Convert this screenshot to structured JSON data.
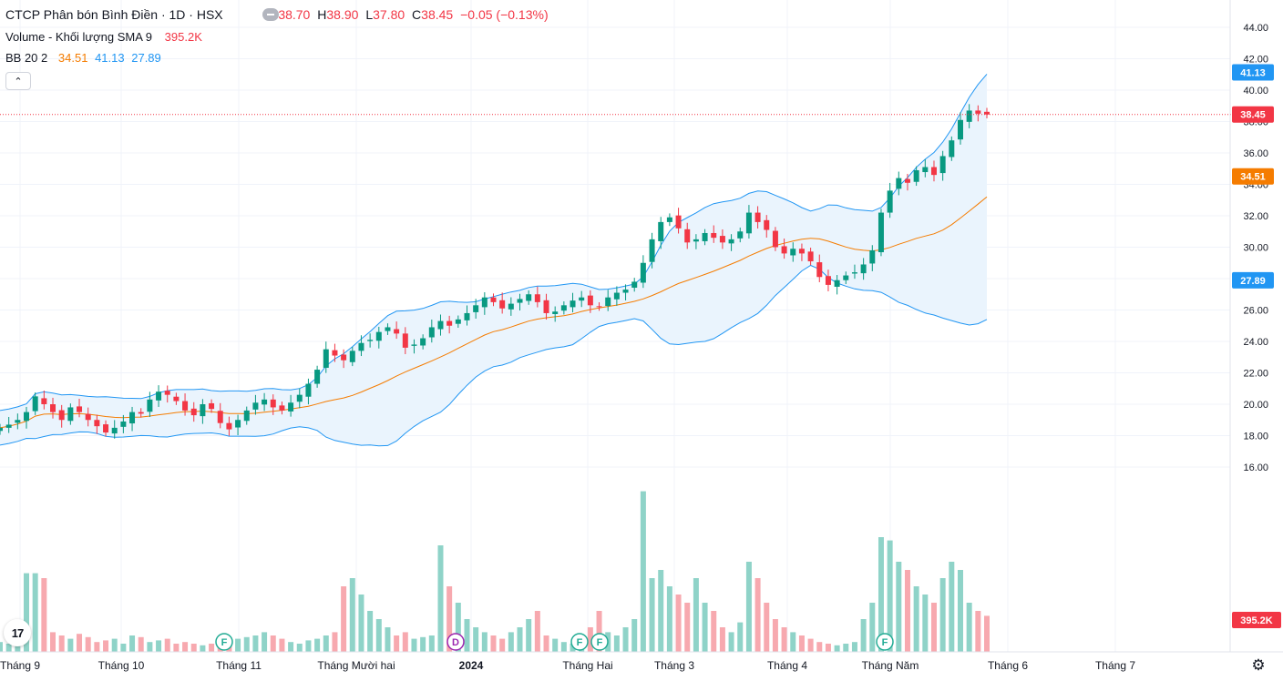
{
  "legend": {
    "symbol": "CTCP Phân bón Bình Điền · 1D · HSX",
    "ohlc": [
      {
        "label": "O",
        "value": "38.70"
      },
      {
        "label": "H",
        "value": "38.90"
      },
      {
        "label": "L",
        "value": "37.80"
      },
      {
        "label": "C",
        "value": "38.45"
      }
    ],
    "change": "−0.05 (−0.13%)",
    "volume_label": "Volume - Khối lượng SMA 9",
    "volume_value": "395.2K",
    "bb_label": "BB 20 2",
    "bb_basis": "34.51",
    "bb_upper": "41.13",
    "bb_lower": "27.89"
  },
  "logo_text": "17",
  "colors": {
    "up": "#089981",
    "down": "#F23645",
    "up_volume": "#8FD3C8",
    "down_volume": "#F7A9AF",
    "bb_basis": "#F57C00",
    "bb_band": "#2196F3",
    "bb_fill": "#EAF4FD",
    "event_green": "#22AB94",
    "event_purple": "#9C27B0"
  },
  "chart_data": {
    "type": "candlestick",
    "title": "CTCP Phân bón Bình Điền · 1D · HSX",
    "ylim": [
      15.0,
      45.0
    ],
    "y_ticks": [
      "16.00",
      "18.00",
      "20.00",
      "22.00",
      "24.00",
      "26.00",
      "28.00",
      "30.00",
      "32.00",
      "34.00",
      "36.00",
      "38.00",
      "40.00",
      "42.00",
      "44.00"
    ],
    "x_labels": [
      "Tháng 9",
      "Tháng 10",
      "Tháng 11",
      "Tháng Mười hai",
      "2024",
      "Tháng Hai",
      "Tháng 3",
      "Tháng 4",
      "Tháng Năm",
      "Tháng 6",
      "Tháng 7"
    ],
    "last_price": "38.45",
    "price_labels": [
      {
        "name": "BB upper",
        "value": "41.13"
      },
      {
        "name": "last",
        "value": "38.45"
      },
      {
        "name": "BB basis",
        "value": "34.51"
      },
      {
        "name": "BB lower",
        "value": "27.89"
      }
    ],
    "volume_last_label": "395.2K",
    "events": [
      {
        "label": "F",
        "kind": "dividend",
        "month": "Tháng 11"
      },
      {
        "label": "D",
        "kind": "dividend",
        "month": "2024"
      },
      {
        "label": "F",
        "kind": "dividend",
        "month": "Tháng Hai"
      },
      {
        "label": "F",
        "kind": "dividend",
        "month": "Tháng Hai"
      },
      {
        "label": "F",
        "kind": "dividend",
        "month": "Tháng Năm"
      }
    ],
    "close_path": [
      18.5,
      18.7,
      19.0,
      19.5,
      20.5,
      20.0,
      19.5,
      19.0,
      19.8,
      19.5,
      19.0,
      18.6,
      18.2,
      18.5,
      18.9,
      19.5,
      19.4,
      20.3,
      20.8,
      20.6,
      20.2,
      19.6,
      19.3,
      20.0,
      19.7,
      18.8,
      18.4,
      19.0,
      19.6,
      20.1,
      20.3,
      19.8,
      19.6,
      20.1,
      20.6,
      21.3,
      22.2,
      23.5,
      23.1,
      22.8,
      23.4,
      23.9,
      24.1,
      24.6,
      24.9,
      24.5,
      23.6,
      23.8,
      24.2,
      24.9,
      25.3,
      25.0,
      25.4,
      25.8,
      26.3,
      26.8,
      26.5,
      26.1,
      26.4,
      26.7,
      27.0,
      26.5,
      25.8,
      25.9,
      26.3,
      26.6,
      26.8,
      26.3,
      26.2,
      26.8,
      27.1,
      27.3,
      27.8,
      29.0,
      30.5,
      31.6,
      31.9,
      31.2,
      30.3,
      30.5,
      30.9,
      30.6,
      30.3,
      30.5,
      31.0,
      32.2,
      31.6,
      31.1,
      30.0,
      29.6,
      29.9,
      29.6,
      29.1,
      28.1,
      27.6,
      27.9,
      28.2,
      28.4,
      28.9,
      29.8,
      32.2,
      33.6,
      34.4,
      34.1,
      34.9,
      35.1,
      34.6,
      35.8,
      36.8,
      38.1,
      38.7,
      38.5,
      38.45
    ],
    "volume_relative": [
      0.06,
      0.05,
      0.07,
      0.48,
      0.48,
      0.45,
      0.12,
      0.1,
      0.08,
      0.11,
      0.09,
      0.06,
      0.07,
      0.08,
      0.05,
      0.1,
      0.09,
      0.06,
      0.07,
      0.08,
      0.05,
      0.06,
      0.05,
      0.04,
      0.05,
      0.06,
      0.07,
      0.08,
      0.09,
      0.1,
      0.12,
      0.1,
      0.08,
      0.06,
      0.05,
      0.07,
      0.08,
      0.1,
      0.12,
      0.4,
      0.45,
      0.35,
      0.25,
      0.2,
      0.15,
      0.1,
      0.12,
      0.08,
      0.09,
      0.1,
      0.65,
      0.4,
      0.3,
      0.2,
      0.15,
      0.12,
      0.1,
      0.08,
      0.12,
      0.15,
      0.2,
      0.25,
      0.1,
      0.08,
      0.06,
      0.05,
      0.1,
      0.15,
      0.25,
      0.12,
      0.1,
      0.15,
      0.2,
      0.98,
      0.45,
      0.5,
      0.4,
      0.35,
      0.3,
      0.45,
      0.3,
      0.25,
      0.15,
      0.12,
      0.18,
      0.55,
      0.45,
      0.3,
      0.2,
      0.15,
      0.12,
      0.1,
      0.08,
      0.06,
      0.05,
      0.04,
      0.05,
      0.06,
      0.2,
      0.3,
      0.7,
      0.68,
      0.55,
      0.5,
      0.4,
      0.35,
      0.3,
      0.45,
      0.55,
      0.5,
      0.3,
      0.25,
      0.22
    ]
  }
}
